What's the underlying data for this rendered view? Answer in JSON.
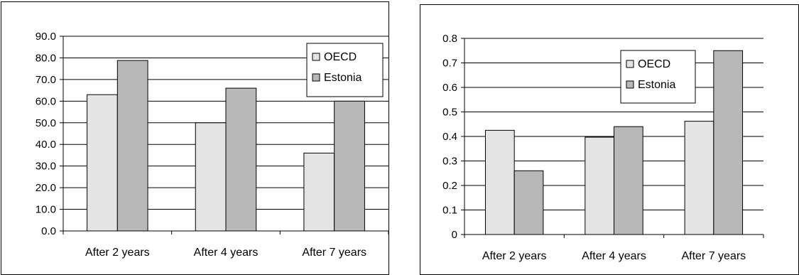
{
  "chart_data": [
    {
      "type": "bar",
      "categories": [
        "After 2 years",
        "After 4 years",
        "After 7 years"
      ],
      "series": [
        {
          "name": "OECD",
          "values": [
            63.0,
            50.0,
            36.0
          ],
          "color": "#e4e4e4"
        },
        {
          "name": "Estonia",
          "values": [
            78.8,
            66.0,
            60.0
          ],
          "color": "#b8b8b8"
        }
      ],
      "ylim": [
        0,
        90
      ],
      "yticks": [
        "0.0",
        "10.0",
        "20.0",
        "30.0",
        "40.0",
        "50.0",
        "60.0",
        "70.0",
        "80.0",
        "90.0"
      ],
      "grid": true,
      "legend": "top-right",
      "title": "",
      "xlabel": "",
      "ylabel": ""
    },
    {
      "type": "bar",
      "categories": [
        "After 2 years",
        "After 4 years",
        "After 7 years"
      ],
      "series": [
        {
          "name": "OECD",
          "values": [
            0.425,
            0.397,
            0.462
          ],
          "color": "#e4e4e4"
        },
        {
          "name": "Estonia",
          "values": [
            0.26,
            0.44,
            0.75
          ],
          "color": "#b8b8b8"
        }
      ],
      "ylim": [
        0,
        0.8
      ],
      "yticks": [
        "0",
        "0.1",
        "0.2",
        "0.3",
        "0.4",
        "0.5",
        "0.6",
        "0.7",
        "0.8"
      ],
      "grid": true,
      "legend": "top-center",
      "title": "",
      "xlabel": "",
      "ylabel": ""
    }
  ]
}
